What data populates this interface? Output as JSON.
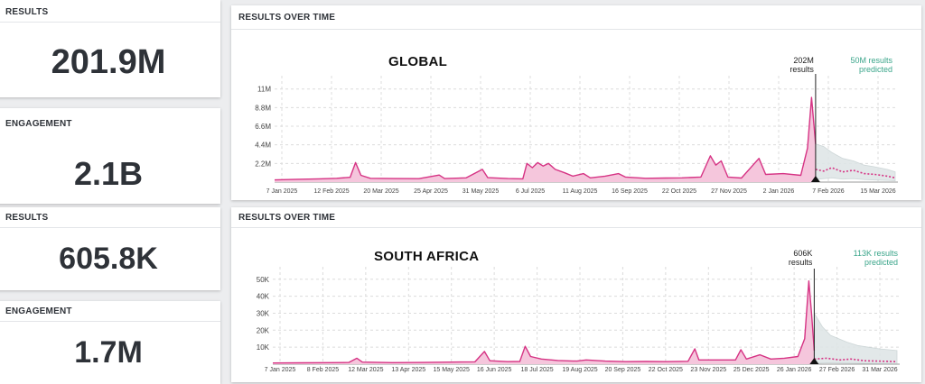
{
  "stats": [
    {
      "label": "RESULTS",
      "value": "201.9M"
    },
    {
      "label": "ENGAGEMENT",
      "value": "2.1B"
    },
    {
      "label": "RESULTS",
      "value": "605.8K"
    },
    {
      "label": "ENGAGEMENT",
      "value": "1.7M"
    }
  ],
  "colors": {
    "actual": "#d63384",
    "actual_fill": "#f5c6dc",
    "predicted_band": "#dfe6e7",
    "predicted_text": "#3aa58a",
    "grid": "#dcdcdc"
  },
  "chart_data": [
    {
      "type": "area",
      "panel_title": "RESULTS OVER TIME",
      "region": "GLOBAL",
      "marker_value": "202M",
      "marker_caption": "results",
      "predicted_value": "50M results",
      "predicted_caption": "predicted",
      "x_ticks": [
        "7 Jan 2025",
        "12 Feb 2025",
        "20 Mar 2025",
        "25 Apr 2025",
        "31 May 2025",
        "6 Jul 2025",
        "11 Aug 2025",
        "16 Sep 2025",
        "22 Oct 2025",
        "27 Nov 2025",
        "2 Jan 2026",
        "7 Feb 2026",
        "15 Mar 2026"
      ],
      "y_ticks": [
        "2.2M",
        "4.4M",
        "6.6M",
        "8.8M",
        "11M"
      ],
      "y_tick_values": [
        2200000,
        4400000,
        6600000,
        8800000,
        11000000
      ],
      "ylim": [
        0,
        11500000
      ],
      "x_range": [
        "2025-01-03",
        "2026-04-10"
      ],
      "marker_date": "2026-02-08",
      "series": [
        {
          "points": [
            [
              "2025-01-03",
              260000
            ],
            [
              "2025-01-20",
              330000
            ],
            [
              "2025-02-05",
              380000
            ],
            [
              "2025-02-18",
              450000
            ],
            [
              "2025-02-28",
              560000
            ],
            [
              "2025-03-04",
              2300000
            ],
            [
              "2025-03-08",
              800000
            ],
            [
              "2025-03-15",
              450000
            ],
            [
              "2025-04-01",
              420000
            ],
            [
              "2025-04-20",
              400000
            ],
            [
              "2025-05-05",
              830000
            ],
            [
              "2025-05-09",
              420000
            ],
            [
              "2025-05-25",
              500000
            ],
            [
              "2025-06-06",
              1500000
            ],
            [
              "2025-06-10",
              520000
            ],
            [
              "2025-06-25",
              420000
            ],
            [
              "2025-07-06",
              380000
            ],
            [
              "2025-07-09",
              2200000
            ],
            [
              "2025-07-13",
              1700000
            ],
            [
              "2025-07-17",
              2300000
            ],
            [
              "2025-07-21",
              1900000
            ],
            [
              "2025-07-25",
              2200000
            ],
            [
              "2025-07-30",
              1500000
            ],
            [
              "2025-08-06",
              1100000
            ],
            [
              "2025-08-12",
              700000
            ],
            [
              "2025-08-20",
              1000000
            ],
            [
              "2025-08-25",
              500000
            ],
            [
              "2025-09-05",
              700000
            ],
            [
              "2025-09-15",
              1000000
            ],
            [
              "2025-09-20",
              600000
            ],
            [
              "2025-10-05",
              450000
            ],
            [
              "2025-10-20",
              480000
            ],
            [
              "2025-11-01",
              500000
            ],
            [
              "2025-11-15",
              600000
            ],
            [
              "2025-11-22",
              3100000
            ],
            [
              "2025-11-26",
              2000000
            ],
            [
              "2025-11-30",
              2500000
            ],
            [
              "2025-12-05",
              600000
            ],
            [
              "2025-12-15",
              480000
            ],
            [
              "2025-12-28",
              2800000
            ],
            [
              "2026-01-02",
              900000
            ],
            [
              "2026-01-15",
              1000000
            ],
            [
              "2026-01-28",
              800000
            ],
            [
              "2026-02-02",
              4000000
            ],
            [
              "2026-02-05",
              10000000
            ],
            [
              "2026-02-08",
              4500000
            ]
          ]
        },
        {
          "name_kind": "predicted",
          "points": [
            [
              "2026-02-08",
              1500000
            ],
            [
              "2026-02-14",
              1300000
            ],
            [
              "2026-02-20",
              1700000
            ],
            [
              "2026-02-28",
              1200000
            ],
            [
              "2026-03-08",
              1400000
            ],
            [
              "2026-03-16",
              1000000
            ],
            [
              "2026-03-24",
              900000
            ],
            [
              "2026-04-02",
              700000
            ],
            [
              "2026-04-08",
              500000
            ]
          ]
        }
      ],
      "band": {
        "upper": [
          [
            "2026-02-08",
            4500000
          ],
          [
            "2026-02-14",
            4200000
          ],
          [
            "2026-02-20",
            3500000
          ],
          [
            "2026-02-28",
            2800000
          ],
          [
            "2026-03-08",
            2500000
          ],
          [
            "2026-03-16",
            2000000
          ],
          [
            "2026-03-24",
            1800000
          ],
          [
            "2026-04-02",
            1500000
          ],
          [
            "2026-04-08",
            1200000
          ]
        ],
        "lower": [
          [
            "2026-02-08",
            300000
          ],
          [
            "2026-02-14",
            400000
          ],
          [
            "2026-02-20",
            500000
          ],
          [
            "2026-02-28",
            350000
          ],
          [
            "2026-03-08",
            400000
          ],
          [
            "2026-03-16",
            300000
          ],
          [
            "2026-03-24",
            250000
          ],
          [
            "2026-04-02",
            200000
          ],
          [
            "2026-04-08",
            150000
          ]
        ]
      },
      "grid": true
    },
    {
      "type": "area",
      "panel_title": "RESULTS OVER TIME",
      "region": "SOUTH AFRICA",
      "marker_value": "606K",
      "marker_caption": "results",
      "predicted_value": "113K results",
      "predicted_caption": "predicted",
      "x_ticks": [
        "7 Jan 2025",
        "8 Feb 2025",
        "12 Mar 2025",
        "13 Apr 2025",
        "15 May 2025",
        "16 Jun 2025",
        "18 Jul 2025",
        "19 Aug 2025",
        "20 Sep 2025",
        "22 Oct 2025",
        "23 Nov 2025",
        "25 Dec 2025",
        "26 Jan 2026",
        "27 Feb 2026",
        "31 Mar 2026"
      ],
      "y_ticks": [
        "10K",
        "20K",
        "30K",
        "40K",
        "50K"
      ],
      "y_tick_values": [
        10000,
        20000,
        30000,
        40000,
        50000
      ],
      "ylim": [
        0,
        52000
      ],
      "x_range": [
        "2025-01-03",
        "2026-04-10"
      ],
      "marker_date": "2026-02-06",
      "series": [
        {
          "points": [
            [
              "2025-01-03",
              700
            ],
            [
              "2025-01-25",
              800
            ],
            [
              "2025-02-15",
              900
            ],
            [
              "2025-02-28",
              1000
            ],
            [
              "2025-03-06",
              3500
            ],
            [
              "2025-03-10",
              1200
            ],
            [
              "2025-04-01",
              900
            ],
            [
              "2025-04-25",
              1000
            ],
            [
              "2025-05-15",
              1200
            ],
            [
              "2025-06-01",
              1400
            ],
            [
              "2025-06-08",
              7500
            ],
            [
              "2025-06-12",
              2000
            ],
            [
              "2025-06-25",
              1500
            ],
            [
              "2025-07-04",
              1600
            ],
            [
              "2025-07-08",
              10500
            ],
            [
              "2025-07-12",
              4500
            ],
            [
              "2025-07-20",
              3000
            ],
            [
              "2025-08-01",
              2200
            ],
            [
              "2025-08-15",
              1800
            ],
            [
              "2025-08-22",
              2500
            ],
            [
              "2025-09-05",
              1800
            ],
            [
              "2025-09-20",
              1500
            ],
            [
              "2025-10-05",
              1600
            ],
            [
              "2025-10-20",
              1500
            ],
            [
              "2025-11-05",
              1700
            ],
            [
              "2025-11-10",
              9000
            ],
            [
              "2025-11-13",
              2500
            ],
            [
              "2025-11-30",
              2500
            ],
            [
              "2025-12-10",
              2500
            ],
            [
              "2025-12-14",
              8500
            ],
            [
              "2025-12-18",
              3000
            ],
            [
              "2025-12-28",
              5500
            ],
            [
              "2026-01-05",
              3000
            ],
            [
              "2026-01-15",
              3500
            ],
            [
              "2026-01-25",
              4500
            ],
            [
              "2026-01-30",
              15000
            ],
            [
              "2026-02-02",
              49000
            ],
            [
              "2026-02-04",
              30000
            ],
            [
              "2026-02-06",
              8000
            ]
          ]
        },
        {
          "name_kind": "predicted",
          "points": [
            [
              "2026-02-06",
              3000
            ],
            [
              "2026-02-15",
              3500
            ],
            [
              "2026-02-25",
              2500
            ],
            [
              "2026-03-05",
              3000
            ],
            [
              "2026-03-15",
              2000
            ],
            [
              "2026-03-25",
              1800
            ],
            [
              "2026-04-08",
              1500
            ]
          ]
        }
      ],
      "band": {
        "upper": [
          [
            "2026-02-06",
            30000
          ],
          [
            "2026-02-12",
            22000
          ],
          [
            "2026-02-18",
            17000
          ],
          [
            "2026-02-24",
            15000
          ],
          [
            "2026-03-02",
            13000
          ],
          [
            "2026-03-10",
            11000
          ],
          [
            "2026-03-18",
            10000
          ],
          [
            "2026-03-26",
            9000
          ],
          [
            "2026-04-08",
            8000
          ]
        ],
        "lower": [
          [
            "2026-02-06",
            500
          ],
          [
            "2026-02-15",
            800
          ],
          [
            "2026-02-25",
            700
          ],
          [
            "2026-03-05",
            600
          ],
          [
            "2026-03-15",
            500
          ],
          [
            "2026-03-25",
            400
          ],
          [
            "2026-04-08",
            300
          ]
        ]
      },
      "grid": true
    }
  ]
}
